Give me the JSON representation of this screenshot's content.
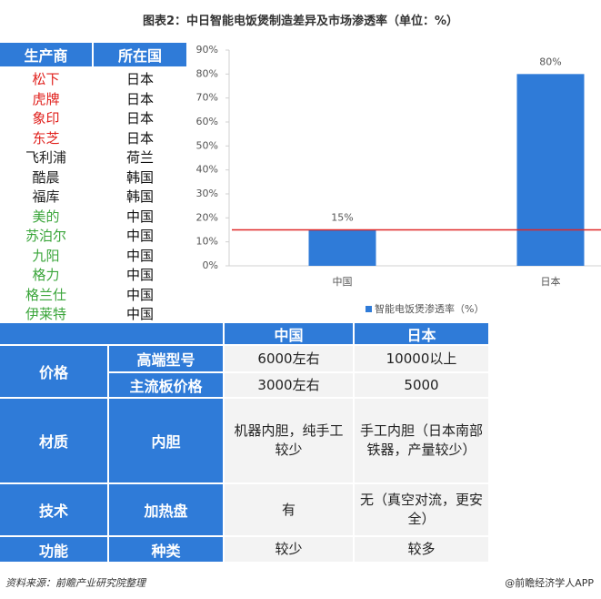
{
  "title": "图表2：中日智能电饭煲制造差异及市场渗透率（单位：%）",
  "brand_table": {
    "header": [
      "生产商",
      "所在国"
    ],
    "rows": [
      [
        "松下",
        "日本"
      ],
      [
        "虎牌",
        "日本"
      ],
      [
        "象印",
        "日本"
      ],
      [
        "东芝",
        "日本"
      ],
      [
        "飞利浦",
        "荷兰"
      ],
      [
        "酷晨",
        "韩国"
      ],
      [
        "福库",
        "韩国"
      ],
      [
        "美的",
        "中国"
      ],
      [
        "苏泊尔",
        "中国"
      ],
      [
        "九阳",
        "中国"
      ],
      [
        "格力",
        "中国"
      ],
      [
        "格兰仕",
        "中国"
      ],
      [
        "伊莱特",
        "中国"
      ]
    ],
    "brand_colors": [
      "#e0201c",
      "#e0201c",
      "#e0201c",
      "#e0201c",
      "#222222",
      "#222222",
      "#222222",
      "#3aa53a",
      "#3aa53a",
      "#3aa53a",
      "#3aa53a",
      "#3aa53a",
      "#3aa53a"
    ]
  },
  "chart_data": {
    "type": "bar",
    "categories": [
      "中国",
      "日本"
    ],
    "series": [
      {
        "name": "智能电饭煲渗透率（%）",
        "color": "#2f7bd8",
        "values": [
          15,
          80
        ],
        "value_labels": [
          "15%",
          "80%"
        ]
      }
    ],
    "ylim": [
      0,
      90
    ],
    "yticks": [
      {
        "value": 0,
        "label": "0%"
      },
      {
        "value": 10,
        "label": "10%"
      },
      {
        "value": 20,
        "label": "20%"
      },
      {
        "value": 30,
        "label": "30%"
      },
      {
        "value": 40,
        "label": "40%"
      },
      {
        "value": 50,
        "label": "50%"
      },
      {
        "value": 60,
        "label": "60%"
      },
      {
        "value": 70,
        "label": "70%"
      },
      {
        "value": 80,
        "label": "80%"
      },
      {
        "value": 90,
        "label": "90%"
      }
    ],
    "reference_line": {
      "value": 15,
      "color": "#e02828"
    }
  },
  "compare_table": {
    "header": [
      "中国",
      "日本"
    ],
    "groups": [
      {
        "label": "价格",
        "items": [
          {
            "label": "高端型号",
            "cells": [
              "6000左右",
              "10000以上"
            ]
          },
          {
            "label": "主流板价格",
            "cells": [
              "3000左右",
              "5000"
            ]
          }
        ]
      },
      {
        "label": "材质",
        "items": [
          {
            "label": "内胆",
            "cells": [
              "机器内胆，纯手工较少",
              "手工内胆（日本南部铁器，产量较少）"
            ]
          }
        ]
      },
      {
        "label": "技术",
        "items": [
          {
            "label": "加热盘",
            "cells": [
              "有",
              "无（真空对流，更安全）"
            ]
          }
        ]
      },
      {
        "label": "功能",
        "items": [
          {
            "label": "种类",
            "cells": [
              "较少",
              "较多"
            ]
          }
        ]
      }
    ]
  },
  "source": "资料来源：前瞻产业研究院整理",
  "brand": "@前瞻经济学人APP"
}
